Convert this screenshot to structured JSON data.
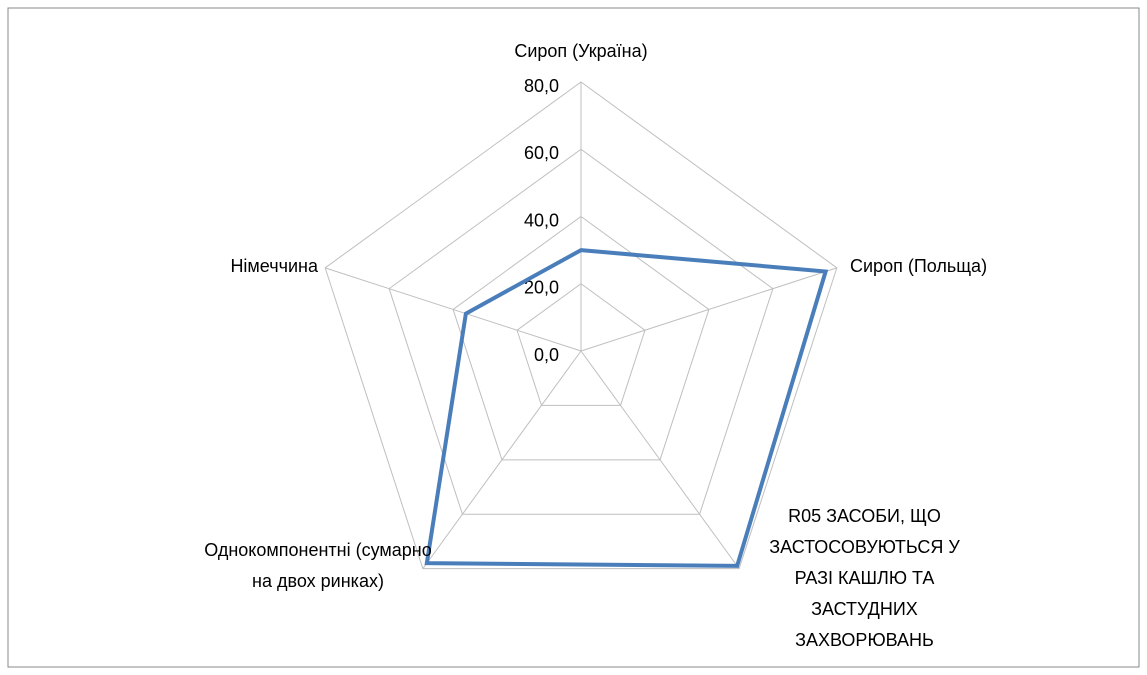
{
  "chart_data": {
    "type": "radar",
    "categories": [
      "Сироп (Україна)",
      "Сироп (Польща)",
      "R05 ЗАСОБИ, ЩО ЗАСТОСОВУЮТЬСЯ У РАЗІ КАШЛЮ ТА ЗАСТУДНИХ ЗАХВОРЮВАНЬ",
      "Однокомпонентні (сумарно на двох ринках)",
      "Німеччина"
    ],
    "series": [
      {
        "color": "#4a7ebb",
        "values": [
          30,
          76.5,
          79,
          78,
          36
        ]
      }
    ],
    "ylim": [
      0,
      80
    ],
    "yticks": [
      {
        "value": 0,
        "label": "0,0"
      },
      {
        "value": 20,
        "label": "20,0"
      },
      {
        "value": 40,
        "label": "40,0"
      },
      {
        "value": 60,
        "label": "60,0"
      },
      {
        "value": 80,
        "label": "80,0"
      }
    ],
    "grid": true
  }
}
